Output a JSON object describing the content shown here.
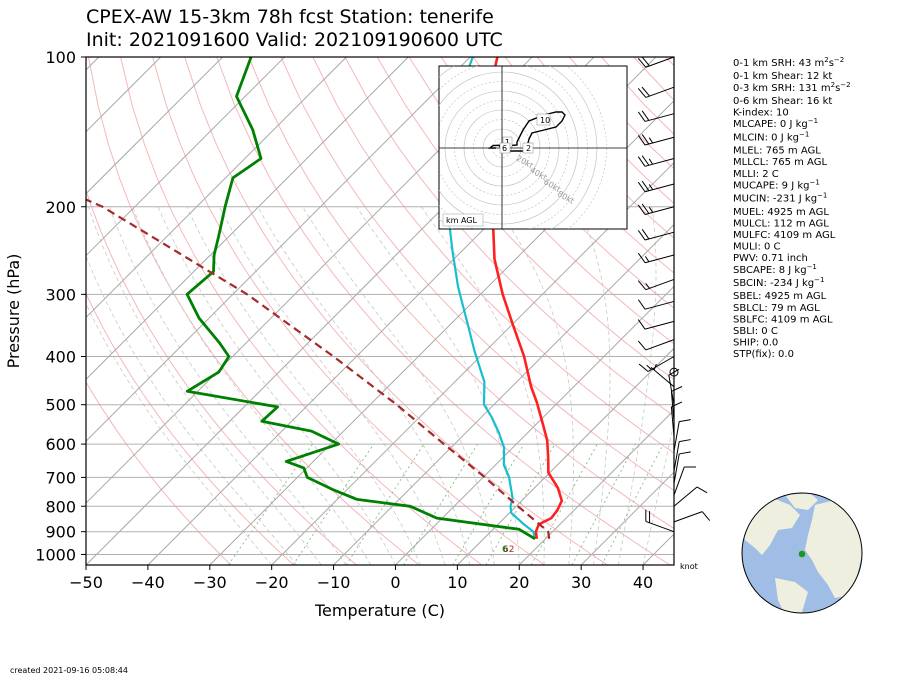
{
  "title_line1": "CPEX-AW 15-3km  78h fcst  Station: tenerife",
  "title_line2": "Init: 2021091600  Valid: 202109190600 UTC",
  "created": "created 2021-09-16 05:08:44",
  "indices": [
    {
      "kind": "sup",
      "before": "0-1 km SRH: 43 m",
      "sup1": "2",
      "mid": "s",
      "sup2": "−2",
      "after": ""
    },
    {
      "kind": "plain",
      "text": "0-1 km Shear: 12 kt"
    },
    {
      "kind": "sup",
      "before": "0-3 km SRH: 131 m",
      "sup1": "2",
      "mid": "s",
      "sup2": "−2",
      "after": ""
    },
    {
      "kind": "plain",
      "text": "0-6 km Shear: 16 kt"
    },
    {
      "kind": "plain",
      "text": "K-index: 10"
    },
    {
      "kind": "sup",
      "before": "MLCAPE: 0 J kg",
      "sup1": "−1",
      "mid": "",
      "sup2": "",
      "after": ""
    },
    {
      "kind": "sup",
      "before": "MLCIN: 0 J kg",
      "sup1": "−1",
      "mid": "",
      "sup2": "",
      "after": ""
    },
    {
      "kind": "plain",
      "text": "MLEL: 765 m AGL"
    },
    {
      "kind": "plain",
      "text": "MLLCL: 765 m AGL"
    },
    {
      "kind": "plain",
      "text": "MLLI: 2 C"
    },
    {
      "kind": "sup",
      "before": "MUCAPE: 9 J kg",
      "sup1": "−1",
      "mid": "",
      "sup2": "",
      "after": ""
    },
    {
      "kind": "sup",
      "before": "MUCIN: -231 J kg",
      "sup1": "−1",
      "mid": "",
      "sup2": "",
      "after": ""
    },
    {
      "kind": "plain",
      "text": "MUEL: 4925 m AGL"
    },
    {
      "kind": "plain",
      "text": "MULCL: 112 m AGL"
    },
    {
      "kind": "plain",
      "text": "MULFC: 4109 m AGL"
    },
    {
      "kind": "plain",
      "text": "MULI: 0 C"
    },
    {
      "kind": "plain",
      "text": "PWV: 0.71 inch"
    },
    {
      "kind": "sup",
      "before": "SBCAPE: 8 J kg",
      "sup1": "−1",
      "mid": "",
      "sup2": "",
      "after": ""
    },
    {
      "kind": "sup",
      "before": "SBCIN: -234 J kg",
      "sup1": "−1",
      "mid": "",
      "sup2": "",
      "after": ""
    },
    {
      "kind": "plain",
      "text": "SBEL: 4925 m AGL"
    },
    {
      "kind": "plain",
      "text": "SBLCL: 79 m AGL"
    },
    {
      "kind": "plain",
      "text": "SBLFC: 4109 m AGL"
    },
    {
      "kind": "plain",
      "text": "SBLI: 0 C"
    },
    {
      "kind": "plain",
      "text": "SHIP: 0.0"
    },
    {
      "kind": "plain",
      "text": "STP(fix): 0.0"
    }
  ],
  "hodograph": {
    "ring_labels": [
      "20kt",
      "40kt",
      "60kt",
      "80kt"
    ],
    "km_labels": [
      "10",
      "1",
      "6",
      "2"
    ],
    "corner_label": "km AGL",
    "trace": [
      [
        -2,
        0
      ],
      [
        -4,
        0
      ],
      [
        -3,
        0.8
      ],
      [
        1,
        1
      ],
      [
        1,
        -1
      ],
      [
        4,
        -1
      ],
      [
        8,
        -1
      ],
      [
        9,
        3
      ],
      [
        10,
        5
      ],
      [
        14,
        6
      ],
      [
        18,
        7
      ],
      [
        20,
        9
      ],
      [
        21,
        11
      ],
      [
        20,
        12
      ],
      [
        18,
        12
      ],
      [
        14,
        11
      ],
      [
        9,
        9
      ],
      [
        7,
        6
      ],
      [
        6,
        4
      ],
      [
        5,
        2
      ],
      [
        5,
        1
      ],
      [
        -1,
        0.5
      ]
    ]
  },
  "barb_units": "knot",
  "surface_labels": [
    "62",
    "6"
  ],
  "colors": {
    "temperature": "#ff2020",
    "dewpoint": "#008000",
    "parcel": "#a52a2a",
    "virtual_temp": "#17becf",
    "isobar": "#b0b0b0",
    "isotherm": "#a8a8a8",
    "dry_adiabat": "#f4b8b8",
    "moist_adiabat": "#c8c8c8",
    "mixing_ratio": "#7fbf7f",
    "land": "#efefe0",
    "ocean": "#a0bde6",
    "station": "#1a9a1a"
  },
  "chart_data": {
    "type": "line",
    "xlabel": "Temperature (C)",
    "ylabel": "Pressure (hPa)",
    "xlim": [
      -50,
      45
    ],
    "ylim": [
      1050,
      100
    ],
    "y_scale": "log",
    "skew_deg": 45,
    "xticks": [
      -50,
      -40,
      -30,
      -20,
      -10,
      0,
      10,
      20,
      30,
      40
    ],
    "yticks": [
      100,
      200,
      300,
      400,
      500,
      600,
      700,
      800,
      900,
      1000
    ],
    "series": [
      {
        "key": "temperature",
        "points": [
          [
            18.6,
            930
          ],
          [
            17.3,
            900
          ],
          [
            16.6,
            870
          ],
          [
            17.6,
            845
          ],
          [
            17.3,
            815
          ],
          [
            16.5,
            780
          ],
          [
            13.8,
            735
          ],
          [
            9.8,
            685
          ],
          [
            7.4,
            640
          ],
          [
            4.4,
            590
          ],
          [
            1.3,
            550
          ],
          [
            -3.4,
            495
          ],
          [
            -6.9,
            460
          ],
          [
            -12.9,
            400
          ],
          [
            -19.9,
            345
          ],
          [
            -26.4,
            300
          ],
          [
            -33.4,
            255
          ],
          [
            -39.6,
            215
          ],
          [
            -46.6,
            180
          ],
          [
            -53.6,
            150
          ],
          [
            -59.6,
            125
          ],
          [
            -65.6,
            100
          ]
        ]
      },
      {
        "key": "virtual_temp",
        "points": [
          [
            18.3,
            930
          ],
          [
            16.9,
            900
          ],
          [
            14.2,
            870
          ],
          [
            10.3,
            825
          ],
          [
            9.1,
            800
          ],
          [
            8.1,
            770
          ],
          [
            4.2,
            700
          ],
          [
            1.3,
            660
          ],
          [
            -1.4,
            610
          ],
          [
            -4.6,
            570
          ],
          [
            -8.3,
            530
          ],
          [
            -11.6,
            500
          ],
          [
            -15.2,
            450
          ],
          [
            -21.8,
            390
          ],
          [
            -27.8,
            340
          ],
          [
            -34.8,
            290
          ],
          [
            -41.6,
            245
          ],
          [
            -47.6,
            210
          ],
          [
            -54.6,
            175
          ],
          [
            -59.6,
            150
          ],
          [
            -64.6,
            125
          ],
          [
            -69.6,
            100
          ]
        ]
      },
      {
        "key": "dewpoint",
        "points": [
          [
            18.3,
            930
          ],
          [
            14.2,
            890
          ],
          [
            -0.9,
            845
          ],
          [
            -7.1,
            800
          ],
          [
            -16.8,
            775
          ],
          [
            -22.4,
            740
          ],
          [
            -28.4,
            700
          ],
          [
            -30.5,
            670
          ],
          [
            -34.4,
            650
          ],
          [
            -28.7,
            600
          ],
          [
            -35.2,
            565
          ],
          [
            -44.8,
            540
          ],
          [
            -44.6,
            505
          ],
          [
            -61.7,
            470
          ],
          [
            -59.7,
            430
          ],
          [
            -60.6,
            400
          ],
          [
            -64.4,
            375
          ],
          [
            -71.6,
            335
          ],
          [
            -77.4,
            300
          ],
          [
            -76.8,
            270
          ],
          [
            -79.4,
            250
          ],
          [
            -81.6,
            230
          ],
          [
            -85.4,
            200
          ],
          [
            -88.8,
            175
          ],
          [
            -87.4,
            160
          ],
          [
            -93.4,
            140
          ],
          [
            -101.4,
            120
          ],
          [
            -105.4,
            100
          ]
        ]
      },
      {
        "key": "parcel",
        "points": [
          [
            20.6,
            930
          ],
          [
            19.3,
            900
          ],
          [
            10.3,
            800
          ],
          [
            0.3,
            700
          ],
          [
            -11.7,
            600
          ],
          [
            -25.7,
            500
          ],
          [
            -43.7,
            400
          ],
          [
            -67.7,
            300
          ],
          [
            -105.2,
            200
          ],
          [
            -163.7,
            120
          ]
        ]
      }
    ],
    "wind_barbs": [
      {
        "p": 900,
        "spd": 20,
        "dir": 290
      },
      {
        "p": 860,
        "spd": 10,
        "dir": 70
      },
      {
        "p": 800,
        "spd": 10,
        "dir": 50
      },
      {
        "p": 760,
        "spd": 10,
        "dir": 20
      },
      {
        "p": 720,
        "spd": 10,
        "dir": 10
      },
      {
        "p": 680,
        "spd": 10,
        "dir": 10
      },
      {
        "p": 620,
        "spd": 10,
        "dir": 10
      },
      {
        "p": 580,
        "spd": 10,
        "dir": 355
      },
      {
        "p": 540,
        "spd": 10,
        "dir": 355
      },
      {
        "p": 500,
        "spd": 10,
        "dir": 350
      },
      {
        "p": 460,
        "spd": 5,
        "dir": 310
      },
      {
        "p": 430,
        "spd": 0,
        "dir": 0
      },
      {
        "p": 400,
        "spd": 15,
        "dir": 240
      },
      {
        "p": 370,
        "spd": 10,
        "dir": 250
      },
      {
        "p": 340,
        "spd": 10,
        "dir": 255
      },
      {
        "p": 310,
        "spd": 10,
        "dir": 255
      },
      {
        "p": 280,
        "spd": 15,
        "dir": 250
      },
      {
        "p": 250,
        "spd": 15,
        "dir": 255
      },
      {
        "p": 225,
        "spd": 20,
        "dir": 255
      },
      {
        "p": 200,
        "spd": 25,
        "dir": 255
      },
      {
        "p": 180,
        "spd": 25,
        "dir": 255
      },
      {
        "p": 160,
        "spd": 25,
        "dir": 255
      },
      {
        "p": 145,
        "spd": 25,
        "dir": 255
      },
      {
        "p": 130,
        "spd": 20,
        "dir": 255
      },
      {
        "p": 115,
        "spd": 20,
        "dir": 250
      },
      {
        "p": 100,
        "spd": 20,
        "dir": 250
      }
    ]
  }
}
